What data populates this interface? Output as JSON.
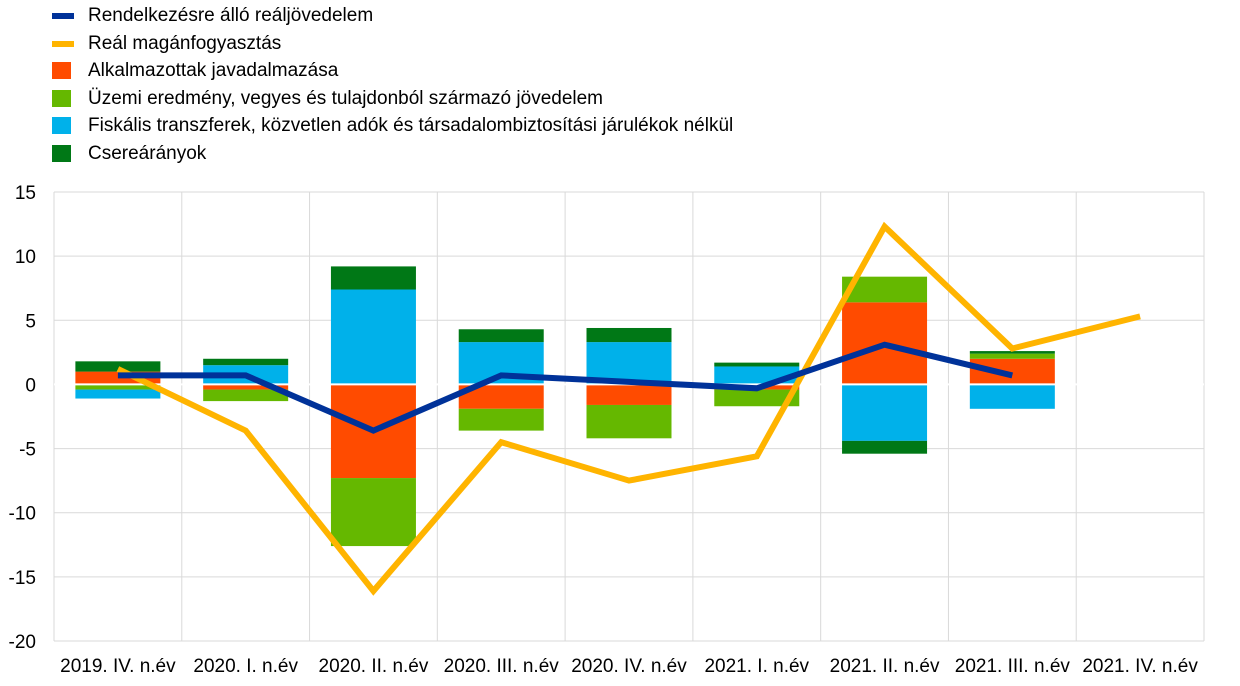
{
  "chart_data": {
    "type": "bar",
    "stacked": true,
    "categories": [
      "2019. IV. n.év",
      "2020. I. n.év",
      "2020. II. n.év",
      "2020. III. n.év",
      "2020. IV. n.év",
      "2021. I. n.év",
      "2021. II. n.év",
      "2021. III. n.év",
      "2021. IV. n.év"
    ],
    "ylim": [
      -20,
      15
    ],
    "yticks": [
      15,
      10,
      5,
      0,
      -5,
      -10,
      -15,
      -20
    ],
    "grid": true,
    "legend_position": "top-left",
    "bar_series": [
      {
        "name": "Alkalmazottak javadalmazása",
        "color": "#ff4b00",
        "values": [
          1.0,
          -0.4,
          -7.3,
          -1.9,
          -1.6,
          -0.4,
          6.4,
          2.0,
          null
        ]
      },
      {
        "name": "Üzemi eredmény, vegyes és tulajdonból származó jövedelem",
        "color": "#65b800",
        "values": [
          -0.4,
          -0.9,
          -5.3,
          -1.7,
          -2.6,
          -1.3,
          2.0,
          0.4,
          null
        ]
      },
      {
        "name": "Fiskális transzferek, közvetlen adók és társadalombiztosítási járulékok nélkül",
        "color": "#00b1ea",
        "values": [
          -0.7,
          1.5,
          7.4,
          3.3,
          3.3,
          1.4,
          -4.4,
          -1.9,
          null
        ]
      },
      {
        "name": "Csereárányok",
        "color": "#007816",
        "values": [
          0.8,
          0.5,
          1.8,
          1.0,
          1.1,
          0.3,
          -1.0,
          0.2,
          null
        ]
      }
    ],
    "line_series": [
      {
        "name": "Rendelkezésre álló reáljövedelem",
        "color": "#003299",
        "values": [
          0.7,
          0.7,
          -3.6,
          0.7,
          0.2,
          -0.3,
          3.1,
          0.7,
          null
        ]
      },
      {
        "name": "Reál magánfogyasztás",
        "color": "#ffb400",
        "values": [
          1.2,
          -3.6,
          -16.1,
          -4.5,
          -7.5,
          -5.6,
          12.3,
          2.8,
          5.3
        ]
      }
    ],
    "legend": [
      {
        "label": "Rendelkezésre álló reáljövedelem",
        "color": "#003299",
        "kind": "line"
      },
      {
        "label": "Reál magánfogyasztás",
        "color": "#ffb400",
        "kind": "line"
      },
      {
        "label": "Alkalmazottak javadalmazása",
        "color": "#ff4b00",
        "kind": "box"
      },
      {
        "label": "Üzemi eredmény, vegyes és tulajdonból származó jövedelem",
        "color": "#65b800",
        "kind": "box"
      },
      {
        "label": "Fiskális transzferek, közvetlen adók és társadalombiztosítási járulékok nélkül",
        "color": "#00b1ea",
        "kind": "box"
      },
      {
        "label": "Csereárányok",
        "color": "#007816",
        "kind": "box"
      }
    ]
  }
}
